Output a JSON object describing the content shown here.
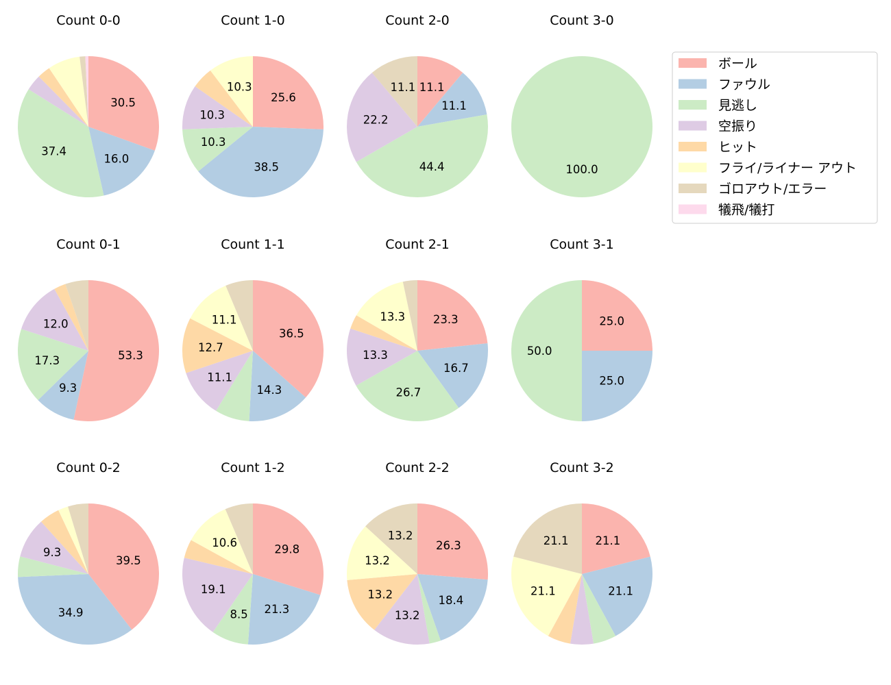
{
  "categories": [
    "ボール",
    "ファウル",
    "見逃し",
    "空振り",
    "ヒット",
    "フライ/ライナー アウト",
    "ゴロアウト/エラー",
    "犠飛/犠打"
  ],
  "colors": [
    "#fbb4ae",
    "#b3cde3",
    "#ccebc5",
    "#decbe4",
    "#fed9a6",
    "#ffffcc",
    "#e5d8bd",
    "#fddaec"
  ],
  "chart_data": [
    {
      "type": "pie",
      "title": "Count 0-0",
      "values": [
        30.5,
        16.0,
        37.4,
        3.7,
        3.0,
        7.4,
        1.3,
        0.7
      ],
      "labels": [
        "30.5",
        "16.0",
        "37.4",
        "",
        "",
        "",
        "",
        ""
      ]
    },
    {
      "type": "pie",
      "title": "Count 1-0",
      "values": [
        25.6,
        38.5,
        10.3,
        10.3,
        5.0,
        10.3,
        0,
        0
      ],
      "labels": [
        "25.6",
        "38.5",
        "10.3",
        "10.3",
        "",
        "10.3",
        "",
        ""
      ]
    },
    {
      "type": "pie",
      "title": "Count 2-0",
      "values": [
        11.1,
        11.1,
        44.4,
        22.2,
        0,
        0,
        11.1,
        0
      ],
      "labels": [
        "11.1",
        "11.1",
        "44.4",
        "22.2",
        "",
        "",
        "11.1",
        ""
      ]
    },
    {
      "type": "pie",
      "title": "Count 3-0",
      "values": [
        0,
        0,
        100.0,
        0,
        0,
        0,
        0,
        0
      ],
      "labels": [
        "",
        "",
        "100.0",
        "",
        "",
        "",
        "",
        ""
      ]
    },
    {
      "type": "pie",
      "title": "Count 0-1",
      "values": [
        53.3,
        9.3,
        17.3,
        12.0,
        2.7,
        0,
        5.3,
        0
      ],
      "labels": [
        "53.3",
        "9.3",
        "17.3",
        "12.0",
        "",
        "",
        "",
        ""
      ]
    },
    {
      "type": "pie",
      "title": "Count 1-1",
      "values": [
        36.5,
        14.3,
        7.9,
        11.1,
        12.7,
        11.1,
        6.3,
        0
      ],
      "labels": [
        "36.5",
        "14.3",
        "",
        "11.1",
        "12.7",
        "11.1",
        "",
        ""
      ]
    },
    {
      "type": "pie",
      "title": "Count 2-1",
      "values": [
        23.3,
        16.7,
        26.7,
        13.3,
        3.3,
        13.3,
        3.3,
        0
      ],
      "labels": [
        "23.3",
        "16.7",
        "26.7",
        "13.3",
        "",
        "13.3",
        "",
        ""
      ]
    },
    {
      "type": "pie",
      "title": "Count 3-1",
      "values": [
        25.0,
        25.0,
        50.0,
        0,
        0,
        0,
        0,
        0
      ],
      "labels": [
        "25.0",
        "25.0",
        "50.0",
        "",
        "",
        "",
        "",
        ""
      ]
    },
    {
      "type": "pie",
      "title": "Count 0-2",
      "values": [
        39.5,
        34.9,
        4.7,
        9.3,
        4.7,
        2.3,
        4.7,
        0
      ],
      "labels": [
        "39.5",
        "34.9",
        "",
        "9.3",
        "",
        "",
        "",
        ""
      ]
    },
    {
      "type": "pie",
      "title": "Count 1-2",
      "values": [
        29.8,
        21.3,
        8.5,
        19.1,
        4.3,
        10.6,
        6.4,
        0
      ],
      "labels": [
        "29.8",
        "21.3",
        "8.5",
        "19.1",
        "",
        "10.6",
        "",
        ""
      ]
    },
    {
      "type": "pie",
      "title": "Count 2-2",
      "values": [
        26.3,
        18.4,
        2.6,
        13.2,
        13.2,
        13.2,
        13.2,
        0
      ],
      "labels": [
        "26.3",
        "18.4",
        "",
        "13.2",
        "13.2",
        "13.2",
        "13.2",
        ""
      ]
    },
    {
      "type": "pie",
      "title": "Count 3-2",
      "values": [
        21.1,
        21.1,
        5.3,
        5.3,
        5.3,
        21.1,
        21.1,
        0
      ],
      "labels": [
        "21.1",
        "21.1",
        "",
        "",
        "",
        "21.1",
        "21.1",
        ""
      ]
    }
  ]
}
